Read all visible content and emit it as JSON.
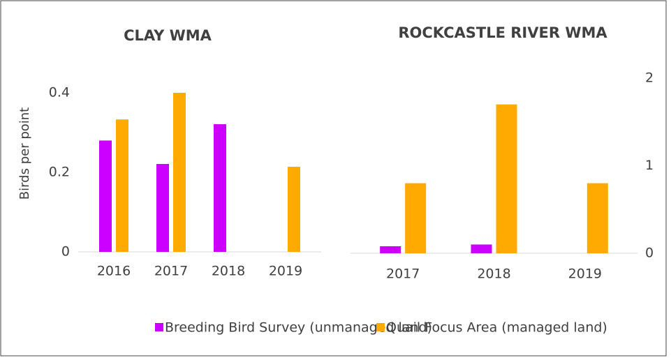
{
  "chart_data": [
    {
      "type": "bar",
      "title": "CLAY WMA",
      "y_label": "Birds per point",
      "categories": [
        "2016",
        "2017",
        "2018",
        "2019"
      ],
      "series": [
        {
          "name": "Breeding Bird Survey (unmanaged land)",
          "color": "#cc00ff",
          "values": [
            0.28,
            0.221,
            0.321,
            null
          ]
        },
        {
          "name": "Quail Focus Area (managed land)",
          "color": "#ffaa00",
          "values": [
            0.333,
            0.4,
            null,
            0.214
          ]
        }
      ],
      "ylim": [
        0,
        0.4
      ],
      "yticks": [
        0,
        0.2,
        0.4
      ],
      "grid": false
    },
    {
      "type": "bar",
      "title": "ROCKCASTLE RIVER WMA",
      "categories": [
        "2017",
        "2018",
        "2019"
      ],
      "series": [
        {
          "name": "Breeding Bird Survey (unmanaged land)",
          "color": "#cc00ff",
          "values": [
            0.08,
            0.1,
            null
          ]
        },
        {
          "name": "Quail Focus Area (managed land)",
          "color": "#ffaa00",
          "values": [
            0.8,
            1.7,
            0.8
          ]
        }
      ],
      "ylim": [
        0,
        2
      ],
      "yticks": [
        0,
        1,
        2
      ],
      "grid": false
    }
  ]
}
